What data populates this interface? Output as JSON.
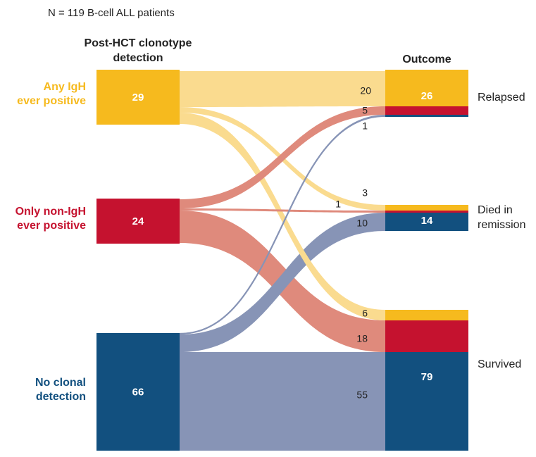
{
  "subtitle": "N = 119 B-cell ALL patients",
  "left_header": [
    "Post-HCT clonotype",
    "detection"
  ],
  "right_header": "Outcome",
  "colors": {
    "igh": "#F6BA1E",
    "nonigh": "#C5122F",
    "none": "#12507F",
    "igh_flow": "#FADB8F",
    "nonigh_flow": "#DF8A7C",
    "none_flow": "#8794B6",
    "text": "#222222"
  },
  "sources": [
    {
      "id": "igh",
      "label": [
        "Any IgH",
        "ever positive"
      ],
      "count": "29"
    },
    {
      "id": "nonigh",
      "label": [
        "Only non-IgH",
        "ever positive"
      ],
      "count": "24"
    },
    {
      "id": "none",
      "label": [
        "No clonal",
        "detection"
      ],
      "count": "66"
    }
  ],
  "outcomes": [
    {
      "id": "relapsed",
      "label": [
        "Relapsed"
      ],
      "count": "26"
    },
    {
      "id": "died",
      "label": [
        "Died in",
        "remission"
      ],
      "count": "14"
    },
    {
      "id": "survived",
      "label": [
        "Survived"
      ],
      "count": "79"
    }
  ],
  "flows": [
    {
      "from": "igh",
      "to": "relapsed",
      "value": "20"
    },
    {
      "from": "igh",
      "to": "died",
      "value": "3"
    },
    {
      "from": "igh",
      "to": "survived",
      "value": "6"
    },
    {
      "from": "nonigh",
      "to": "relapsed",
      "value": "5"
    },
    {
      "from": "nonigh",
      "to": "died",
      "value": "1"
    },
    {
      "from": "nonigh",
      "to": "survived",
      "value": "18"
    },
    {
      "from": "none",
      "to": "relapsed",
      "value": "1"
    },
    {
      "from": "none",
      "to": "died",
      "value": "10"
    },
    {
      "from": "none",
      "to": "survived",
      "value": "55"
    }
  ]
}
